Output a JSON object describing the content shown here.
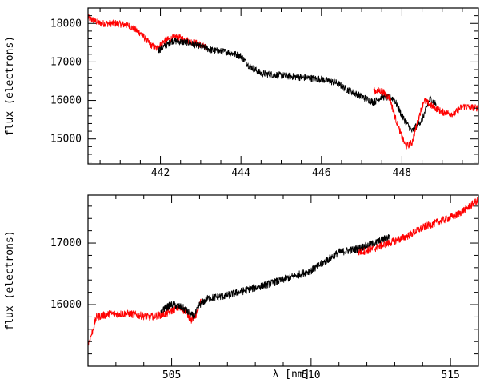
{
  "chart_data": [
    {
      "type": "line",
      "title": "",
      "xlabel": "",
      "ylabel": "flux (electrons)",
      "xlim": [
        440.2,
        449.9
      ],
      "ylim": [
        14350,
        18400
      ],
      "xticks": [
        442,
        444,
        446,
        448
      ],
      "yticks": [
        15000,
        16000,
        17000,
        18000
      ],
      "grid": false,
      "legend": "none",
      "series": [
        {
          "color": "#ff0000",
          "points": [
            [
              440.2,
              18150
            ],
            [
              440.5,
              18000
            ],
            [
              440.9,
              18000
            ],
            [
              441.2,
              17950
            ],
            [
              441.5,
              17750
            ],
            [
              441.75,
              17450
            ],
            [
              441.9,
              17350
            ],
            [
              442.1,
              17550
            ],
            [
              442.4,
              17650
            ],
            [
              442.7,
              17550
            ],
            [
              443.0,
              17450
            ],
            [
              443.15,
              17350
            ]
          ]
        },
        {
          "color": "#000000",
          "points": [
            [
              441.95,
              17300
            ],
            [
              442.3,
              17550
            ],
            [
              442.7,
              17500
            ],
            [
              443.0,
              17400
            ],
            [
              443.3,
              17300
            ],
            [
              443.7,
              17250
            ],
            [
              444.0,
              17150
            ],
            [
              444.2,
              16900
            ],
            [
              444.5,
              16700
            ],
            [
              445.0,
              16650
            ],
            [
              445.5,
              16600
            ],
            [
              446.0,
              16550
            ],
            [
              446.4,
              16450
            ],
            [
              446.6,
              16300
            ],
            [
              446.9,
              16150
            ],
            [
              447.3,
              15950
            ],
            [
              447.5,
              16100
            ],
            [
              447.8,
              16050
            ],
            [
              448.0,
              15600
            ],
            [
              448.25,
              15200
            ],
            [
              448.5,
              15500
            ],
            [
              448.7,
              16050
            ],
            [
              448.85,
              15900
            ]
          ]
        },
        {
          "color": "#ff0000",
          "points": [
            [
              447.3,
              16250
            ],
            [
              447.5,
              16250
            ],
            [
              447.7,
              16050
            ],
            [
              447.85,
              15500
            ],
            [
              448.0,
              15050
            ],
            [
              448.1,
              14800
            ],
            [
              448.25,
              14900
            ],
            [
              448.4,
              15500
            ],
            [
              448.55,
              16000
            ],
            [
              448.75,
              15850
            ],
            [
              449.0,
              15700
            ],
            [
              449.3,
              15650
            ],
            [
              449.5,
              15850
            ],
            [
              449.9,
              15800
            ]
          ]
        }
      ]
    },
    {
      "type": "line",
      "title": "",
      "xlabel": "λ [nm]",
      "ylabel": "flux (electrons)",
      "xlim": [
        502.0,
        516.0
      ],
      "ylim": [
        15000,
        17780
      ],
      "xticks": [
        505,
        510,
        515
      ],
      "yticks": [
        16000,
        17000
      ],
      "grid": false,
      "legend": "none",
      "series": [
        {
          "color": "#ff0000",
          "points": [
            [
              502.0,
              15350
            ],
            [
              502.15,
              15550
            ],
            [
              502.3,
              15800
            ],
            [
              502.8,
              15850
            ],
            [
              503.5,
              15850
            ],
            [
              504.2,
              15800
            ],
            [
              504.8,
              15850
            ],
            [
              505.2,
              15950
            ],
            [
              505.5,
              15900
            ],
            [
              505.7,
              15750
            ],
            [
              505.9,
              15850
            ],
            [
              506.05,
              16050
            ]
          ]
        },
        {
          "color": "#000000",
          "points": [
            [
              504.6,
              15900
            ],
            [
              505.0,
              16000
            ],
            [
              505.4,
              15950
            ],
            [
              505.8,
              15800
            ],
            [
              506.0,
              16000
            ],
            [
              506.3,
              16100
            ],
            [
              507.0,
              16150
            ],
            [
              507.8,
              16250
            ],
            [
              508.6,
              16350
            ],
            [
              509.3,
              16450
            ],
            [
              510.0,
              16550
            ],
            [
              510.5,
              16700
            ],
            [
              511.0,
              16850
            ],
            [
              511.6,
              16900
            ],
            [
              512.3,
              17000
            ],
            [
              512.8,
              17100
            ]
          ]
        },
        {
          "color": "#ff0000",
          "points": [
            [
              511.7,
              16850
            ],
            [
              512.2,
              16900
            ],
            [
              512.8,
              17000
            ],
            [
              513.4,
              17100
            ],
            [
              514.0,
              17250
            ],
            [
              514.6,
              17350
            ],
            [
              515.2,
              17450
            ],
            [
              515.7,
              17600
            ],
            [
              516.0,
              17700
            ]
          ]
        }
      ]
    }
  ]
}
